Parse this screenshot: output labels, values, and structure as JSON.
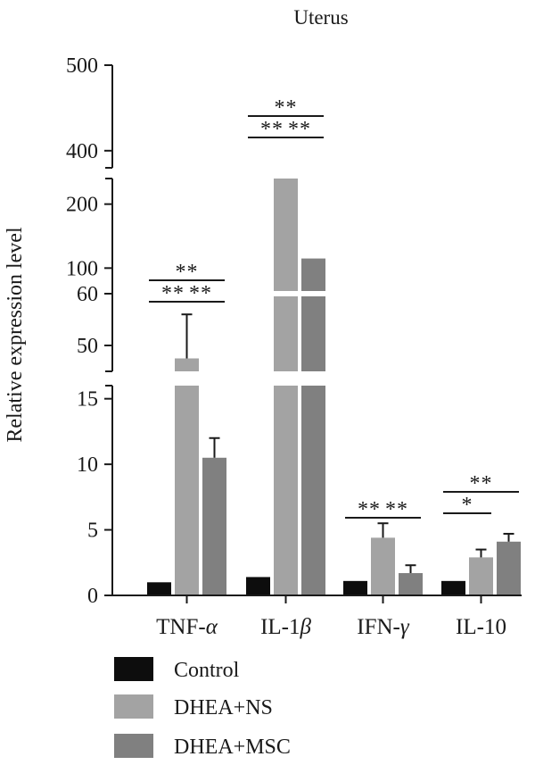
{
  "chart_data": {
    "type": "bar",
    "title": "Uterus",
    "ylabel": "Relative expression level",
    "xlabel": "",
    "categories": [
      "TNF-α",
      "IL-1β",
      "IFN-γ",
      "IL-10"
    ],
    "category_display": [
      {
        "prefix": "TNF-",
        "greek": "α"
      },
      {
        "prefix": "IL-1",
        "greek": "β"
      },
      {
        "prefix": "IFN-",
        "greek": "γ"
      },
      {
        "prefix": "IL-10",
        "greek": ""
      }
    ],
    "y_axis": {
      "broken": true,
      "segments": [
        {
          "range": [
            0,
            16
          ],
          "ticks": [
            0,
            5,
            10,
            15
          ]
        },
        {
          "range": [
            45,
            60
          ],
          "ticks": [
            50,
            60
          ]
        },
        {
          "range": [
            60,
            240
          ],
          "ticks": [
            100,
            200
          ]
        },
        {
          "range": [
            380,
            500
          ],
          "ticks": [
            400,
            500
          ]
        }
      ]
    },
    "series": [
      {
        "name": "Control",
        "color": "#0d0d0d",
        "values": [
          1.0,
          1.4,
          1.1,
          1.1
        ],
        "errors": [
          null,
          null,
          null,
          null
        ]
      },
      {
        "name": "DHEA+NS",
        "color": "#a3a3a3",
        "values": [
          47.5,
          370,
          4.4,
          2.9
        ],
        "errors": [
          8.5,
          null,
          1.1,
          0.6
        ]
      },
      {
        "name": "DHEA+MSC",
        "color": "#808080",
        "values": [
          10.5,
          115,
          1.7,
          4.1
        ],
        "errors": [
          1.5,
          null,
          0.6,
          0.6
        ]
      }
    ],
    "significance": [
      {
        "category": 0,
        "from": 0,
        "to": 2,
        "label": "**",
        "level": 2
      },
      {
        "category": 0,
        "from": 0,
        "to": 1,
        "label": "**",
        "level": 1
      },
      {
        "category": 0,
        "from": 1,
        "to": 2,
        "label": "**",
        "level": 1
      },
      {
        "category": 1,
        "from": 0,
        "to": 2,
        "label": "**",
        "level": 2
      },
      {
        "category": 1,
        "from": 0,
        "to": 1,
        "label": "**",
        "level": 1
      },
      {
        "category": 1,
        "from": 1,
        "to": 2,
        "label": "**",
        "level": 1
      },
      {
        "category": 2,
        "from": 0,
        "to": 1,
        "label": "**",
        "level": 1
      },
      {
        "category": 2,
        "from": 1,
        "to": 2,
        "label": "**",
        "level": 1
      },
      {
        "category": 3,
        "from": 0,
        "to": 2,
        "label": "**",
        "level": 2
      },
      {
        "category": 3,
        "from": 0,
        "to": 1,
        "label": "*",
        "level": 1
      }
    ],
    "legend_position": "bottom-left",
    "grid": false
  }
}
